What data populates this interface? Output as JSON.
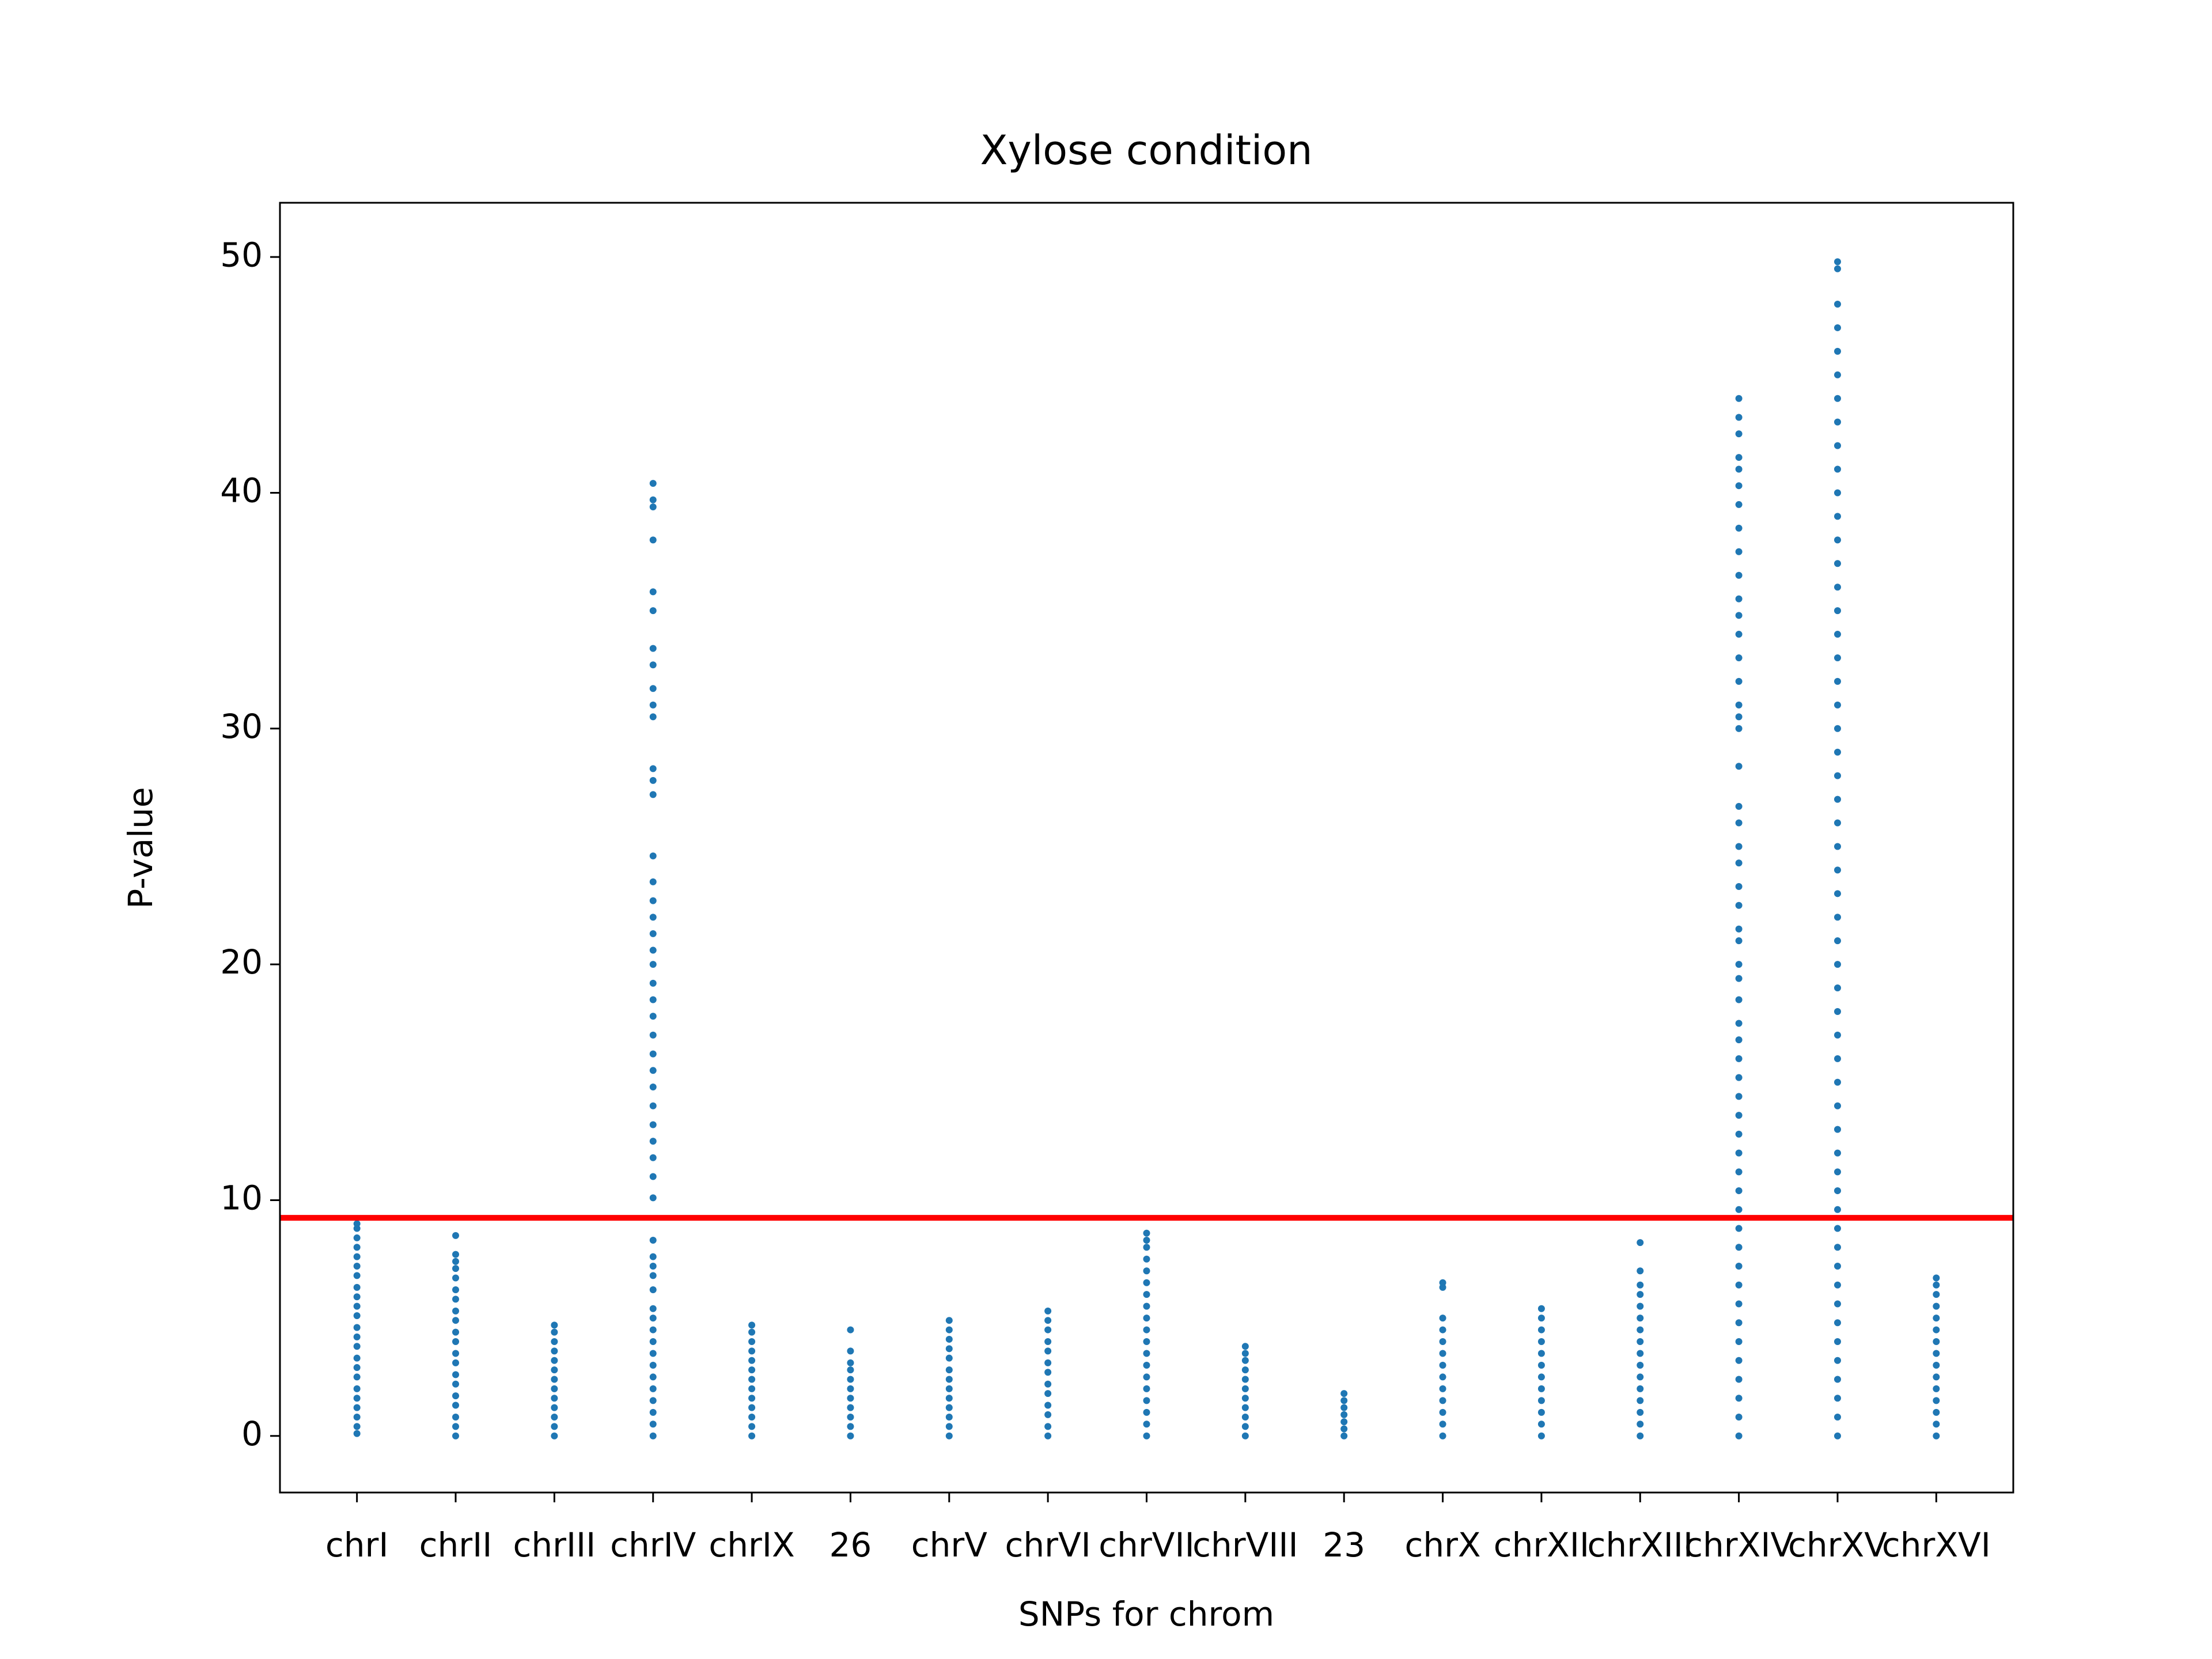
{
  "chart_data": {
    "type": "strip",
    "title": "Xylose condition",
    "xlabel": "SNPs for chrom",
    "ylabel": "P-value",
    "categories": [
      "chrI",
      "chrII",
      "chrIII",
      "chrIV",
      "chrIX",
      "26",
      "chrV",
      "chrVI",
      "chrVII",
      "chrVIII",
      "23",
      "chrX",
      "chrXII",
      "chrXIII",
      "chrXIV",
      "chrXV",
      "chrXVI"
    ],
    "color": "#1f77b4",
    "values": [
      [
        0.1,
        0.4,
        0.8,
        1.2,
        1.6,
        2.0,
        2.5,
        2.9,
        3.3,
        3.8,
        4.2,
        4.6,
        5.1,
        5.5,
        5.9,
        6.3,
        6.8,
        7.2,
        7.6,
        8.0,
        8.4,
        8.8,
        9.0
      ],
      [
        0.0,
        0.4,
        0.8,
        1.3,
        1.7,
        2.2,
        2.6,
        3.1,
        3.5,
        4.0,
        4.4,
        4.9,
        5.3,
        5.8,
        6.2,
        6.7,
        7.1,
        7.4,
        7.7,
        8.5
      ],
      [
        0.0,
        0.4,
        0.8,
        1.2,
        1.6,
        2.0,
        2.4,
        2.8,
        3.2,
        3.6,
        4.0,
        4.4,
        4.7
      ],
      [
        0.0,
        0.5,
        1.0,
        1.5,
        2.0,
        2.5,
        3.0,
        3.5,
        4.0,
        4.5,
        5.0,
        5.4,
        6.2,
        6.8,
        7.2,
        7.6,
        8.3,
        10.1,
        11.0,
        11.8,
        12.5,
        13.2,
        14.0,
        14.8,
        15.5,
        16.2,
        17.0,
        17.8,
        18.5,
        19.2,
        20.0,
        20.6,
        21.3,
        22.0,
        22.7,
        23.5,
        24.6,
        27.2,
        27.8,
        28.3,
        30.5,
        31.0,
        31.7,
        32.7,
        33.4,
        35.0,
        35.8,
        38.0,
        39.4,
        39.7,
        40.4
      ],
      [
        0.0,
        0.4,
        0.8,
        1.2,
        1.6,
        2.0,
        2.4,
        2.8,
        3.2,
        3.6,
        4.0,
        4.4,
        4.7
      ],
      [
        0.0,
        0.4,
        0.8,
        1.2,
        1.6,
        2.0,
        2.4,
        2.8,
        3.1,
        3.6,
        4.5
      ],
      [
        0.0,
        0.4,
        0.8,
        1.2,
        1.6,
        2.0,
        2.4,
        2.8,
        3.3,
        3.7,
        4.1,
        4.5,
        4.9
      ],
      [
        0.0,
        0.4,
        0.9,
        1.3,
        1.8,
        2.2,
        2.7,
        3.1,
        3.6,
        4.0,
        4.5,
        4.9,
        5.3
      ],
      [
        0.0,
        0.5,
        1.0,
        1.5,
        2.0,
        2.5,
        3.0,
        3.5,
        4.0,
        4.5,
        5.0,
        5.5,
        6.0,
        6.5,
        7.0,
        7.5,
        8.0,
        8.3,
        8.6
      ],
      [
        0.0,
        0.4,
        0.8,
        1.2,
        1.6,
        2.0,
        2.4,
        2.8,
        3.2,
        3.5,
        3.8
      ],
      [
        0.0,
        0.3,
        0.6,
        0.9,
        1.2,
        1.5,
        1.8
      ],
      [
        0.0,
        0.5,
        1.0,
        1.5,
        2.0,
        2.5,
        3.0,
        3.5,
        4.0,
        4.5,
        5.0,
        6.3,
        6.5
      ],
      [
        0.0,
        0.5,
        1.0,
        1.5,
        2.0,
        2.5,
        3.0,
        3.5,
        4.0,
        4.5,
        5.0,
        5.4
      ],
      [
        0.0,
        0.5,
        1.0,
        1.5,
        2.0,
        2.5,
        3.0,
        3.5,
        4.0,
        4.5,
        5.0,
        5.5,
        6.0,
        6.4,
        7.0,
        8.2
      ],
      [
        0.0,
        0.8,
        1.6,
        2.4,
        3.2,
        4.0,
        4.8,
        5.6,
        6.4,
        7.2,
        8.0,
        8.8,
        9.6,
        10.4,
        11.2,
        12.0,
        12.8,
        13.6,
        14.4,
        15.2,
        16.0,
        16.8,
        17.5,
        18.5,
        19.4,
        20.0,
        21.0,
        21.5,
        22.5,
        23.3,
        24.3,
        25.0,
        26.0,
        26.7,
        28.4,
        30.0,
        30.5,
        31.0,
        32.0,
        33.0,
        34.0,
        34.8,
        35.5,
        36.5,
        37.5,
        38.5,
        39.5,
        40.3,
        41.0,
        41.5,
        42.5,
        43.2,
        44.0
      ],
      [
        0.0,
        0.8,
        1.6,
        2.4,
        3.2,
        4.0,
        4.8,
        5.6,
        6.4,
        7.2,
        8.0,
        8.8,
        9.6,
        10.4,
        11.2,
        12.0,
        13.0,
        14.0,
        15.0,
        16.0,
        17.0,
        18.0,
        19.0,
        20.0,
        21.0,
        22.0,
        23.0,
        24.0,
        25.0,
        26.0,
        27.0,
        28.0,
        29.0,
        30.0,
        31.0,
        32.0,
        33.0,
        34.0,
        35.0,
        36.0,
        37.0,
        38.0,
        39.0,
        40.0,
        41.0,
        42.0,
        43.0,
        44.0,
        45.0,
        46.0,
        47.0,
        48.0,
        49.5,
        49.8
      ],
      [
        0.0,
        0.5,
        1.0,
        1.5,
        2.0,
        2.5,
        3.0,
        3.5,
        4.0,
        4.5,
        5.0,
        5.5,
        6.0,
        6.4,
        6.7
      ]
    ],
    "threshold": {
      "value": 9.25,
      "color": "#ff0000"
    },
    "ylim": [
      -2.4,
      52.3
    ],
    "yticks": [
      0,
      10,
      20,
      30,
      40,
      50
    ]
  }
}
